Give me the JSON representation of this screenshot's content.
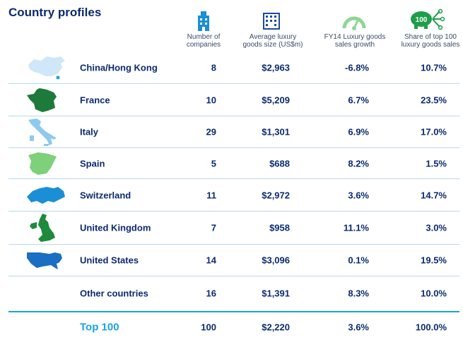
{
  "title": "Country profiles",
  "headers": {
    "companies": "Number of companies",
    "size": "Average luxury goods size (US$m)",
    "growth": "FY14 Luxury goods sales growth",
    "share": "Share of top 100 luxury goods sales",
    "share_badge": "100"
  },
  "rows": [
    {
      "country": "China/Hong Kong",
      "companies": "8",
      "size": "$2,963",
      "growth": "-6.8%",
      "share": "10.7%"
    },
    {
      "country": "France",
      "companies": "10",
      "size": "$5,209",
      "growth": "6.7%",
      "share": "23.5%"
    },
    {
      "country": "Italy",
      "companies": "29",
      "size": "$1,301",
      "growth": "6.9%",
      "share": "17.0%"
    },
    {
      "country": "Spain",
      "companies": "5",
      "size": "$688",
      "growth": "8.2%",
      "share": "1.5%"
    },
    {
      "country": "Switzerland",
      "companies": "11",
      "size": "$2,972",
      "growth": "3.6%",
      "share": "14.7%"
    },
    {
      "country": "United Kingdom",
      "companies": "7",
      "size": "$958",
      "growth": "11.1%",
      "share": "3.0%"
    },
    {
      "country": "United States",
      "companies": "14",
      "size": "$3,096",
      "growth": "0.1%",
      "share": "19.5%"
    },
    {
      "country": "Other countries",
      "companies": "16",
      "size": "$1,391",
      "growth": "8.3%",
      "share": "10.0%"
    }
  ],
  "total": {
    "country": "Top 100",
    "companies": "100",
    "size": "$2,220",
    "growth": "3.6%",
    "share": "100.0%"
  },
  "colors": {
    "navy": "#0b2a6f",
    "accent": "#1aa3e0",
    "light_blue": "#a9d4f2",
    "green": "#1e8a3c",
    "light_green": "#7ed17a"
  }
}
